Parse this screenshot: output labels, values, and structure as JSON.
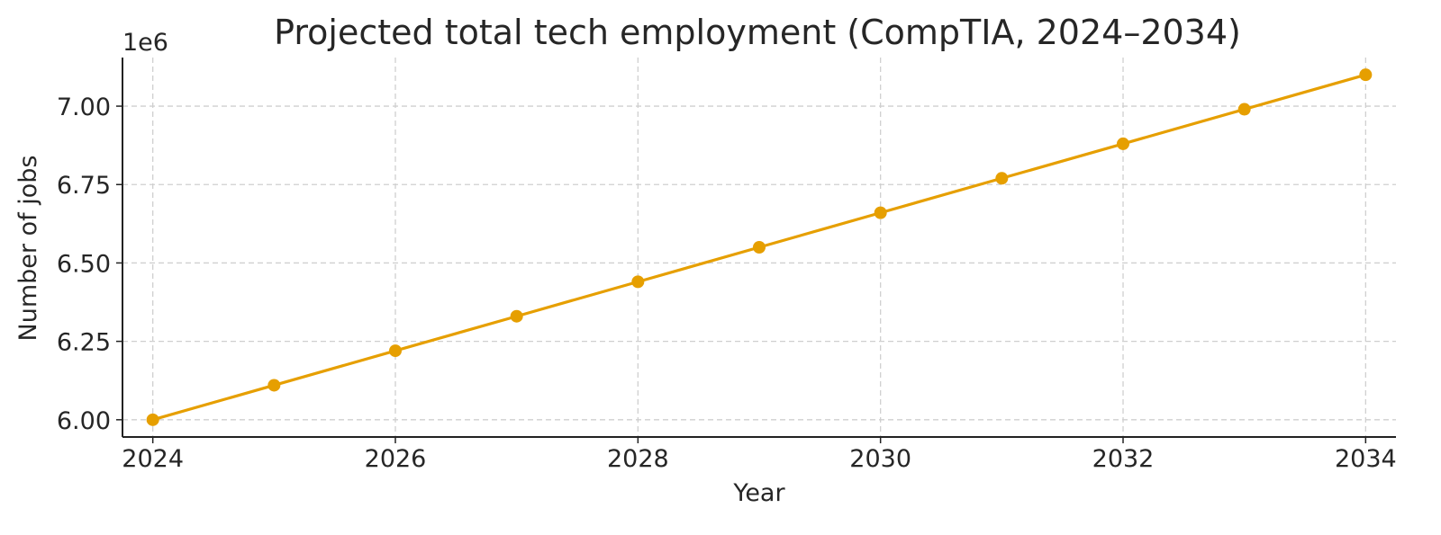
{
  "chart_data": {
    "type": "line",
    "title": "Projected total tech employment (CompTIA, 2024–2034)",
    "xlabel": "Year",
    "ylabel": "Number of jobs",
    "y_offset_label": "1e6",
    "x": [
      2024,
      2025,
      2026,
      2027,
      2028,
      2029,
      2030,
      2031,
      2032,
      2033,
      2034
    ],
    "series": [
      {
        "values": [
          6000000,
          6110000,
          6220000,
          6330000,
          6440000,
          6550000,
          6660000,
          6770000,
          6880000,
          6990000,
          7100000
        ]
      }
    ],
    "xticks": [
      2024,
      2026,
      2028,
      2030,
      2032,
      2034
    ],
    "xtick_labels": [
      "2024",
      "2026",
      "2028",
      "2030",
      "2032",
      "2034"
    ],
    "yticks": [
      6000000,
      6250000,
      6500000,
      6750000,
      7000000
    ],
    "ytick_labels": [
      "6.00",
      "6.25",
      "6.50",
      "6.75",
      "7.00"
    ],
    "xlim": [
      2023.75,
      2034.25
    ],
    "ylim": [
      5945000,
      7155000
    ],
    "grid": true,
    "color": "#E69F00"
  }
}
